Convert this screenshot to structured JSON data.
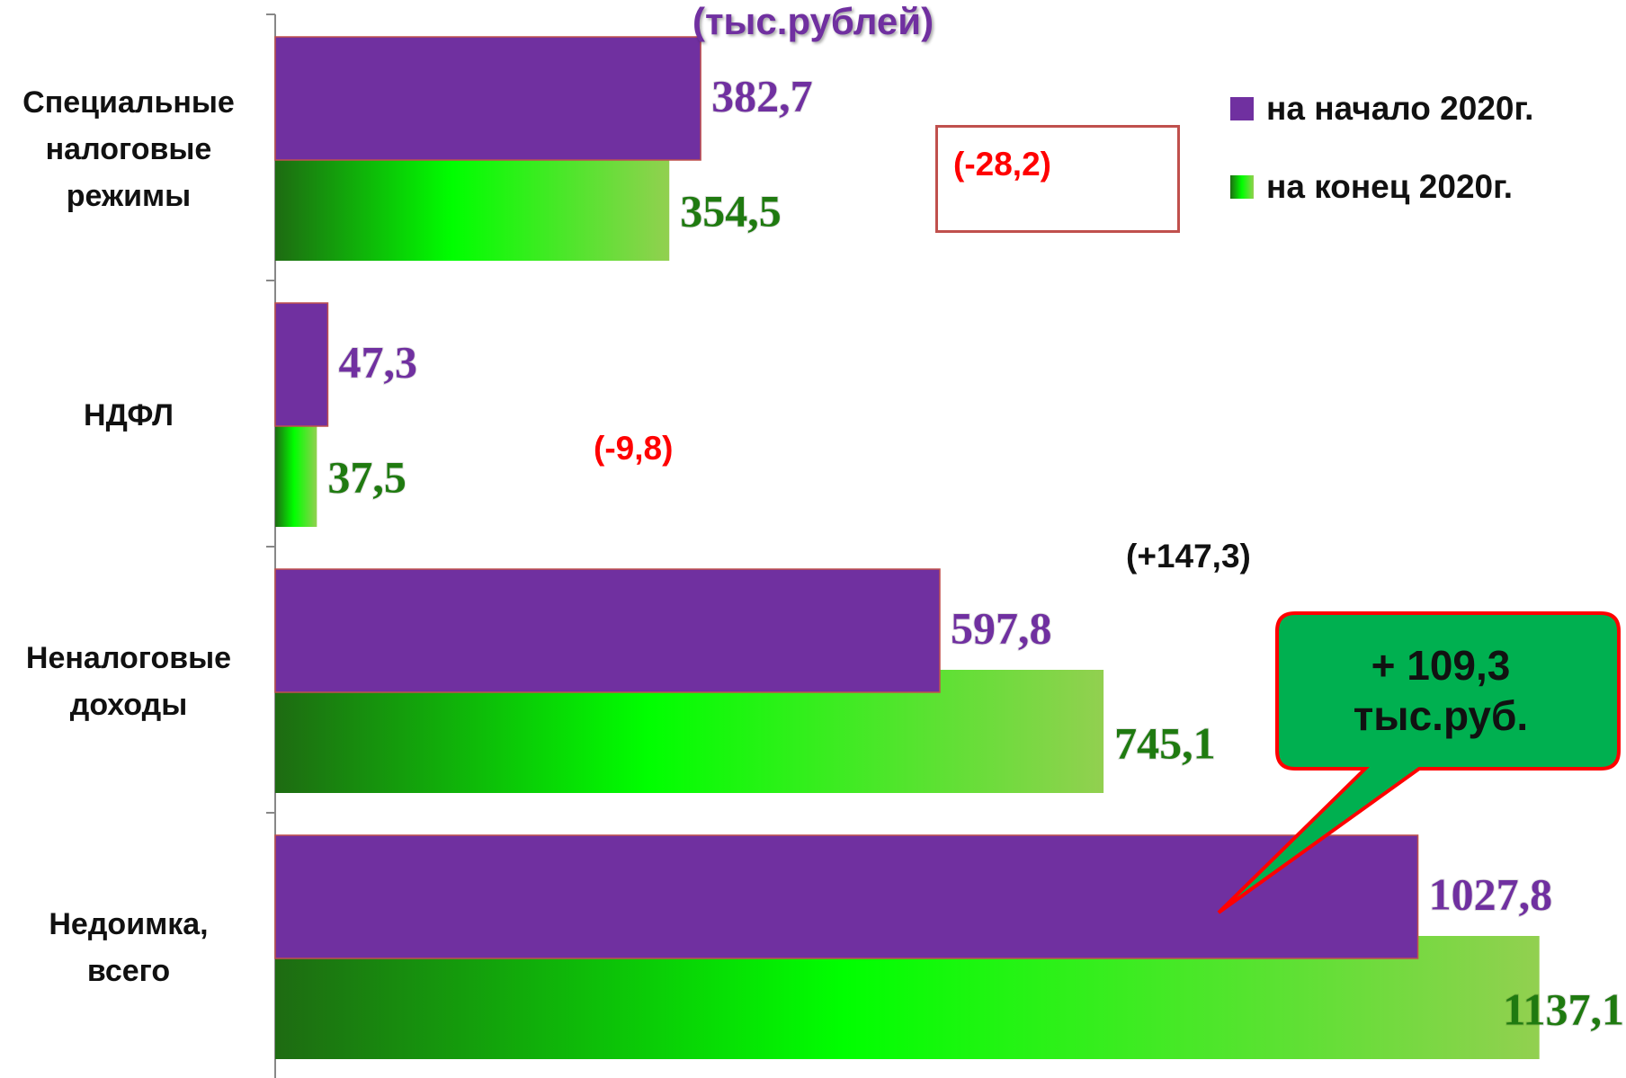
{
  "chart_data": {
    "type": "bar",
    "orientation": "horizontal",
    "unit_title": "(тыс.рублей)",
    "categories": [
      "Специальные налоговые режимы",
      "НДФЛ",
      "Неналоговые доходы",
      "Недоимка, всего"
    ],
    "category_lines": [
      [
        "Специальные",
        "налоговые",
        "режимы"
      ],
      [
        "НДФЛ"
      ],
      [
        "Неналоговые",
        "доходы"
      ],
      [
        "Недоимка,",
        "всего"
      ]
    ],
    "series": [
      {
        "name": "на начало 2020г.",
        "values": [
          382.7,
          47.3,
          597.8,
          1027.8
        ],
        "labels": [
          "382,7",
          "47,3",
          "597,8",
          "1027,8"
        ],
        "color": "#7030a0"
      },
      {
        "name": "на конец 2020г.",
        "values": [
          354.5,
          37.5,
          745.1,
          1137.1
        ],
        "labels": [
          "354,5",
          "37,5",
          "745,1",
          "1137,1"
        ],
        "color": "#00ee00"
      }
    ],
    "xlim": [
      0,
      1160
    ],
    "grid": false,
    "legend_position": "top-right",
    "annotations": {
      "delta_special": "(-28,2)",
      "delta_ndfl": "(-9,8)",
      "delta_nonTax": "(+147,3)",
      "callout_lines": [
        "+ 109,3",
        "тыс.руб."
      ]
    }
  },
  "colors": {
    "series_start": "#7030a0",
    "series_end_gradient": [
      "#1e6b12",
      "#00ff00",
      "#92d050"
    ],
    "end_label": "#1f7a10",
    "delta_negative": "#ff0000",
    "callout_fill": "#00b050",
    "callout_border": "#ff0000"
  }
}
